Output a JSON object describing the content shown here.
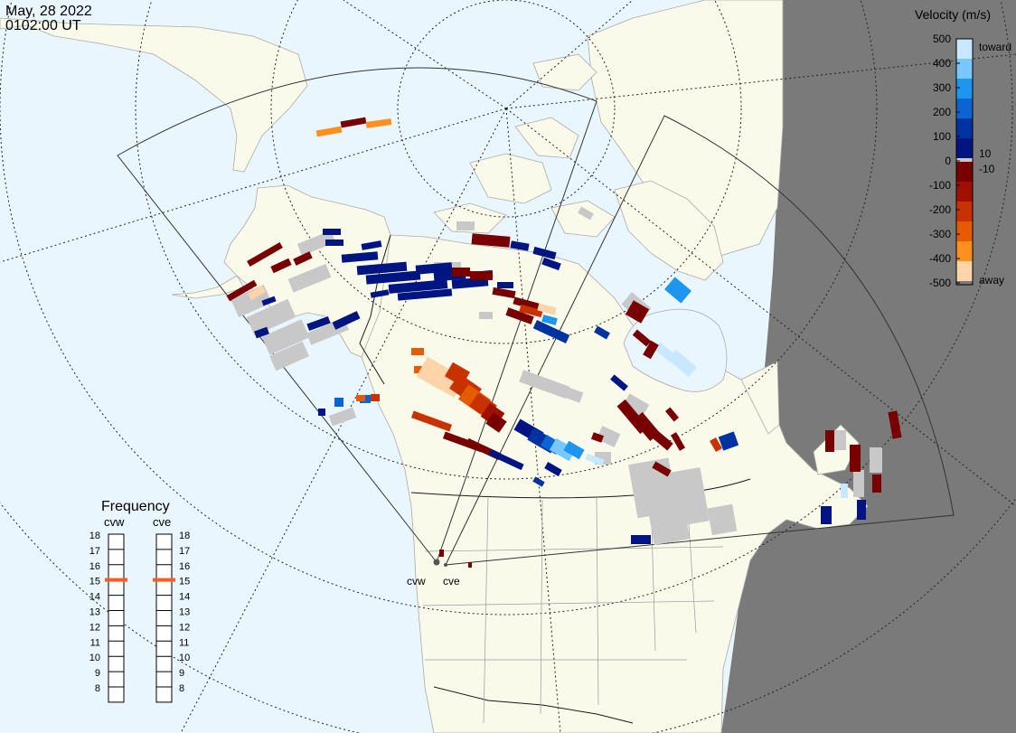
{
  "header": {
    "date": "May, 28 2022",
    "time": "0102:00 UT"
  },
  "colorbar": {
    "title": "Velocity (m/s)",
    "tick_values": [
      "500",
      "400",
      "300",
      "200",
      "100",
      "0",
      "-100",
      "-200",
      "-300",
      "-400",
      "-500"
    ],
    "near_zero_labels": [
      "10",
      "-10"
    ],
    "end_labels": {
      "toward": "toward",
      "away": "away"
    },
    "colors_toward": [
      "#c8e8ff",
      "#78c8ff",
      "#1e96f0",
      "#0a64d2",
      "#0032a0",
      "#001482"
    ],
    "colors_away": [
      "#780000",
      "#a01000",
      "#c83200",
      "#e65a00",
      "#ff9020",
      "#ffd4a8"
    ]
  },
  "frequency": {
    "title": "Frequency",
    "radars": [
      {
        "name": "cvw",
        "selected": 15
      },
      {
        "name": "cve",
        "selected": 15
      }
    ],
    "levels": [
      "18",
      "17",
      "16",
      "15",
      "14",
      "13",
      "12",
      "11",
      "10",
      "9",
      "8"
    ]
  },
  "stations": [
    {
      "name": "cvw"
    },
    {
      "name": "cve"
    }
  ],
  "colors": {
    "ocean": "#eaf6fd",
    "land": "#fafaeb",
    "night": "#7a7a7a",
    "no_data_gray": "#c8c8c8",
    "marker": "#ff5a1e"
  }
}
